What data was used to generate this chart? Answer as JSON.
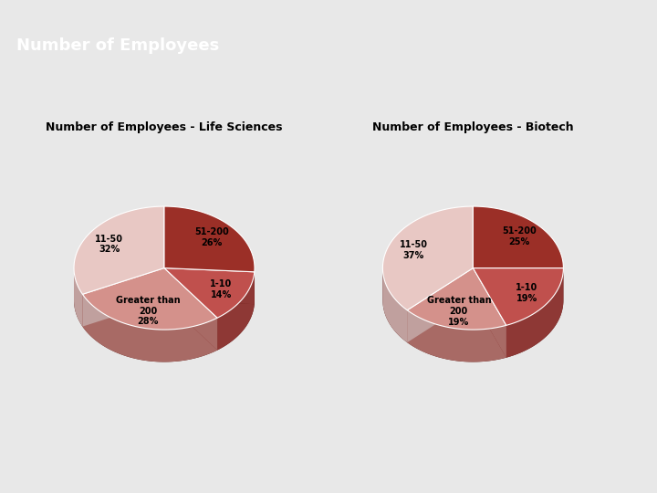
{
  "title": "Number of Employees",
  "title_bg": "#8fba3c",
  "title_color": "#ffffff",
  "content_bg": "#e8e8e8",
  "white_bg": "#ffffff",
  "chart1_title": "Number of Employees - Life Sciences",
  "chart2_title": "Number of Employees - Biotech",
  "chart1_labels": [
    "51-200",
    "1-10",
    "Greater than\n200",
    "11-50"
  ],
  "chart1_values": [
    26,
    14,
    28,
    32
  ],
  "chart2_labels": [
    "51-200",
    "1-10",
    "Greater than\n200",
    "11-50"
  ],
  "chart2_values": [
    25,
    19,
    19,
    37
  ],
  "colors_top": [
    "#9b2f27",
    "#c0504d",
    "#d4918b",
    "#e8c8c4"
  ],
  "colors_side": [
    "#6e1f1a",
    "#8e3835",
    "#a86a65",
    "#c0a09e"
  ],
  "label_fontsize": 7,
  "chart_title_fontsize": 9,
  "header_fontsize": 13
}
